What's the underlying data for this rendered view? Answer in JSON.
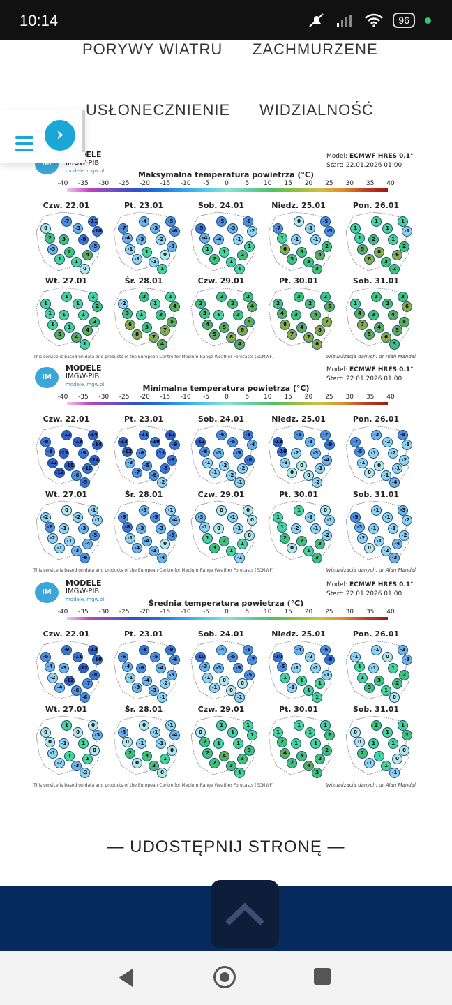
{
  "status": {
    "time": "10:14",
    "battery": "96"
  },
  "nav": {
    "wind_gusts": "PORYWY WIATRU",
    "cloudiness": "ZACHMURZENE",
    "sunshine": "USŁONECZNIENIE",
    "visibility": "WIDZIALNOŚĆ"
  },
  "model_info": {
    "brand_line1": "MODELE",
    "brand_line2": "IMGW-PIB",
    "brand_url": "modele.imgw.pl",
    "logo_text": "IM GW",
    "model_label": "Model:",
    "model_value": "ECMWF HRES 0.1°",
    "start_label": "Start:",
    "start_value": "22.01.2026 01:00"
  },
  "scale_ticks": [
    "-40",
    "-35",
    "-30",
    "-25",
    "-20",
    "-15",
    "-10",
    "-5",
    "0",
    "5",
    "10",
    "15",
    "20",
    "25",
    "30",
    "35",
    "40"
  ],
  "footer": {
    "left": "This service is based on data and products of the European Centre for Medium-Range Weather Forecasts (ECMWF)",
    "right": "Wizualizacja danych: dr Alan Mandal"
  },
  "panels": [
    {
      "title": "Maksymalna temperatura powietrza (°C)",
      "days": [
        {
          "label": "Czw. 22.01",
          "values": [
            "-7",
            "-11",
            "0",
            "-3",
            "-10",
            "2",
            "3",
            "-8",
            "-5",
            "-3",
            "2",
            "4",
            "1",
            "1",
            "0"
          ]
        },
        {
          "label": "Pt. 23.01",
          "values": [
            "-4",
            "-5",
            "-7",
            "-3",
            "-6",
            "-4",
            "-3",
            "-2",
            "-3",
            "-1",
            "1",
            "0",
            "-1",
            "-1",
            "1"
          ]
        },
        {
          "label": "Sob. 24.01",
          "values": [
            "-5",
            "-6",
            "-9",
            "-3",
            "-2",
            "-4",
            "-4",
            "-1",
            "1",
            "1",
            "1",
            "2",
            "2",
            "1",
            "1"
          ]
        },
        {
          "label": "Niedz. 25.01",
          "values": [
            "0",
            "-5",
            "-7",
            "-1",
            "-5",
            "1",
            "-1",
            "-1",
            "2",
            "6",
            "3",
            "4",
            "3",
            "3",
            "3"
          ]
        },
        {
          "label": "Pon. 26.01",
          "values": [
            "1",
            "1",
            "1",
            "1",
            "-1",
            "1",
            "2",
            "1",
            "2",
            "5",
            "6",
            "6",
            "8",
            "3",
            "2"
          ]
        }
      ]
    },
    {
      "title": "",
      "days": [
        {
          "label": "Wt. 27.01",
          "values": [
            "1",
            "1",
            "1",
            "1",
            "2",
            "1",
            "1",
            "1",
            "2",
            "1",
            "1",
            "4",
            "5",
            "4",
            "1"
          ]
        },
        {
          "label": "Śr. 28.01",
          "values": [
            "2",
            "1",
            "-2",
            "1",
            "4",
            "3",
            "1",
            "3",
            "5",
            "6",
            "3",
            "7",
            "8",
            "7",
            "4"
          ]
        },
        {
          "label": "Czw. 29.01",
          "values": [
            "2",
            "2",
            "2",
            "2",
            "4",
            "3",
            "1",
            "3",
            "4",
            "4",
            "5",
            "6",
            "5",
            "8",
            "4"
          ]
        },
        {
          "label": "Pt. 30.01",
          "values": [
            "3",
            "2",
            "2",
            "2",
            "5",
            "4",
            "3",
            "4",
            "7",
            "8",
            "4",
            "8",
            "7",
            "7",
            "6"
          ]
        },
        {
          "label": "Sob. 31.01",
          "values": [
            "3",
            "3",
            "1",
            "2",
            "6",
            "4",
            "3",
            "4",
            "5",
            "7",
            "4",
            "5",
            "5",
            "6",
            "3"
          ]
        }
      ]
    },
    {
      "title": "Minimalna temperatura powietrza (°C)",
      "days": [
        {
          "label": "Czw. 22.01",
          "values": [
            "-12",
            "-14",
            "-8",
            "-13",
            "-14",
            "-8",
            "-12",
            "-9",
            "-14",
            "-12",
            "-15",
            "-10",
            "-12",
            "-6",
            "-9"
          ]
        },
        {
          "label": "Pt. 23.01",
          "values": [
            "-11",
            "-12",
            "-13",
            "-10",
            "-9",
            "-12",
            "-6",
            "-11",
            "-9",
            "-3",
            "-5",
            "-8",
            "-7",
            "-6",
            "-2"
          ]
        },
        {
          "label": "Sob. 24.01",
          "values": [
            "-6",
            "-8",
            "-12",
            "-5",
            "-4",
            "-6",
            "-3",
            "-5",
            "-8",
            "-1",
            "-2",
            "-2",
            "-1",
            "-2",
            "-1"
          ]
        },
        {
          "label": "Niedz. 25.01",
          "values": [
            "-5",
            "-7",
            "-13",
            "-3",
            "-9",
            "-10",
            "-2",
            "-3",
            "-4",
            "-1",
            "0",
            "-1",
            "0",
            "0",
            "-2"
          ]
        },
        {
          "label": "Pon. 26.01",
          "values": [
            "-3",
            "-5",
            "-7",
            "-2",
            "-1",
            "-5",
            "-1",
            "-2",
            "-2",
            "-1",
            "0",
            "-1",
            "0",
            "-1",
            "-4"
          ]
        }
      ]
    },
    {
      "title": "",
      "days": [
        {
          "label": "Wt. 27.01",
          "values": [
            "0",
            "-1",
            "-2",
            "-2",
            "-1",
            "-6",
            "-1",
            "-3",
            "-5",
            "-2",
            "-1",
            "-4",
            "-1",
            "-3",
            "-6"
          ]
        },
        {
          "label": "Śr. 28.01",
          "values": [
            "-3",
            "-1",
            "-5",
            "-5",
            "-4",
            "-8",
            "-3",
            "-3",
            "-5",
            "-1",
            "-4",
            "0",
            "-4",
            "-3",
            "-4"
          ]
        },
        {
          "label": "Czw. 29.01",
          "values": [
            "0",
            "0",
            "-3",
            "-1",
            "0",
            "-1",
            "0",
            "-1",
            "0",
            "1",
            "2",
            "1",
            "3",
            "1",
            "-1"
          ]
        },
        {
          "label": "Pt. 30.01",
          "values": [
            "1",
            "0",
            "1",
            "-1",
            "-1",
            "1",
            "-2",
            "-1",
            "-2",
            "2",
            "2",
            "3",
            "0",
            "1",
            "3"
          ]
        },
        {
          "label": "Sob. 31.01",
          "values": [
            "-1",
            "-3",
            "-5",
            "-1",
            "-2",
            "-3",
            "-1",
            "-1",
            "-2",
            "-2",
            "-1",
            "-4",
            "0",
            "-2",
            "-3"
          ]
        }
      ]
    },
    {
      "title": "Średnia temperatura powietrza (°C)",
      "days": [
        {
          "label": "Czw. 22.01",
          "values": [
            "-9",
            "-13",
            "-5",
            "-11",
            "-10",
            "-4",
            "-3",
            "-12",
            "-8",
            "-2",
            "-12",
            "-7",
            "-4",
            "-6",
            "-6"
          ]
        },
        {
          "label": "Pt. 23.01",
          "values": [
            "-8",
            "-9",
            "-6",
            "-5",
            "-6",
            "-4",
            "-6",
            "-4",
            "-3",
            "-1",
            "-4",
            "-2",
            "-3",
            "-3",
            "-1"
          ]
        },
        {
          "label": "Sob. 24.01",
          "values": [
            "-4",
            "-6",
            "-10",
            "-5",
            "-7",
            "-3",
            "-3",
            "-5",
            "-5",
            "-1",
            "0",
            "0",
            "-1",
            "0",
            "-1"
          ]
        },
        {
          "label": "Niedz. 25.01",
          "values": [
            "-4",
            "-6",
            "-10",
            "-2",
            "-8",
            "-5",
            "-1",
            "-1",
            "-1",
            "1",
            "1",
            "1",
            "-1",
            "1",
            "1"
          ]
        },
        {
          "label": "Pon. 26.01",
          "values": [
            "-1",
            "-3",
            "-1",
            "0",
            "-3",
            "1",
            "-1",
            "1",
            "2",
            "1",
            "3",
            "2",
            "3",
            "1",
            "0"
          ]
        }
      ]
    },
    {
      "title": "",
      "days": [
        {
          "label": "Wt. 27.01",
          "values": [
            "1",
            "0",
            "0",
            "0",
            "-3",
            "0",
            "-1",
            "1",
            "0",
            "-1",
            "1",
            "1",
            "-2",
            "-3",
            "-2"
          ]
        },
        {
          "label": "Śr. 28.01",
          "values": [
            "0",
            "-1",
            "-3",
            "-1",
            "-4",
            "0",
            "-1",
            "-1",
            "0",
            "2",
            "3",
            "1",
            "0",
            "2",
            "0"
          ]
        },
        {
          "label": "Czw. 29.01",
          "values": [
            "1",
            "1",
            "0",
            "1",
            "1",
            "2",
            "1",
            "1",
            "3",
            "2",
            "4",
            "3",
            "2",
            "3",
            "1"
          ]
        },
        {
          "label": "Pt. 30.01",
          "values": [
            "1",
            "1",
            "1",
            "1",
            "2",
            "2",
            "1",
            "1",
            "2",
            "4",
            "3",
            "2",
            "2",
            "4",
            "2"
          ]
        },
        {
          "label": "Sob. 31.01",
          "values": [
            "2",
            "1",
            "0",
            "1",
            "2",
            "0",
            "1",
            "1",
            "0",
            "2",
            "1",
            "0",
            "-1",
            "1",
            "-1"
          ]
        }
      ]
    }
  ],
  "share": "UDOSTĘPNIJ STRONĘ",
  "colors": {
    "accent": "#1aa7d8",
    "band": "#062a5e",
    "to_top": "#0d1e3a"
  }
}
